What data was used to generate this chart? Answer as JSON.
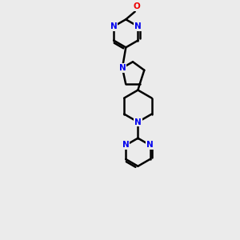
{
  "bg_color": "#ebebeb",
  "bond_color": "#000000",
  "N_color": "#0000ee",
  "O_color": "#ee0000",
  "line_width": 1.8,
  "fig_width": 3.0,
  "fig_height": 3.0,
  "dpi": 100,
  "xlim": [
    0,
    6
  ],
  "ylim": [
    0,
    12
  ]
}
